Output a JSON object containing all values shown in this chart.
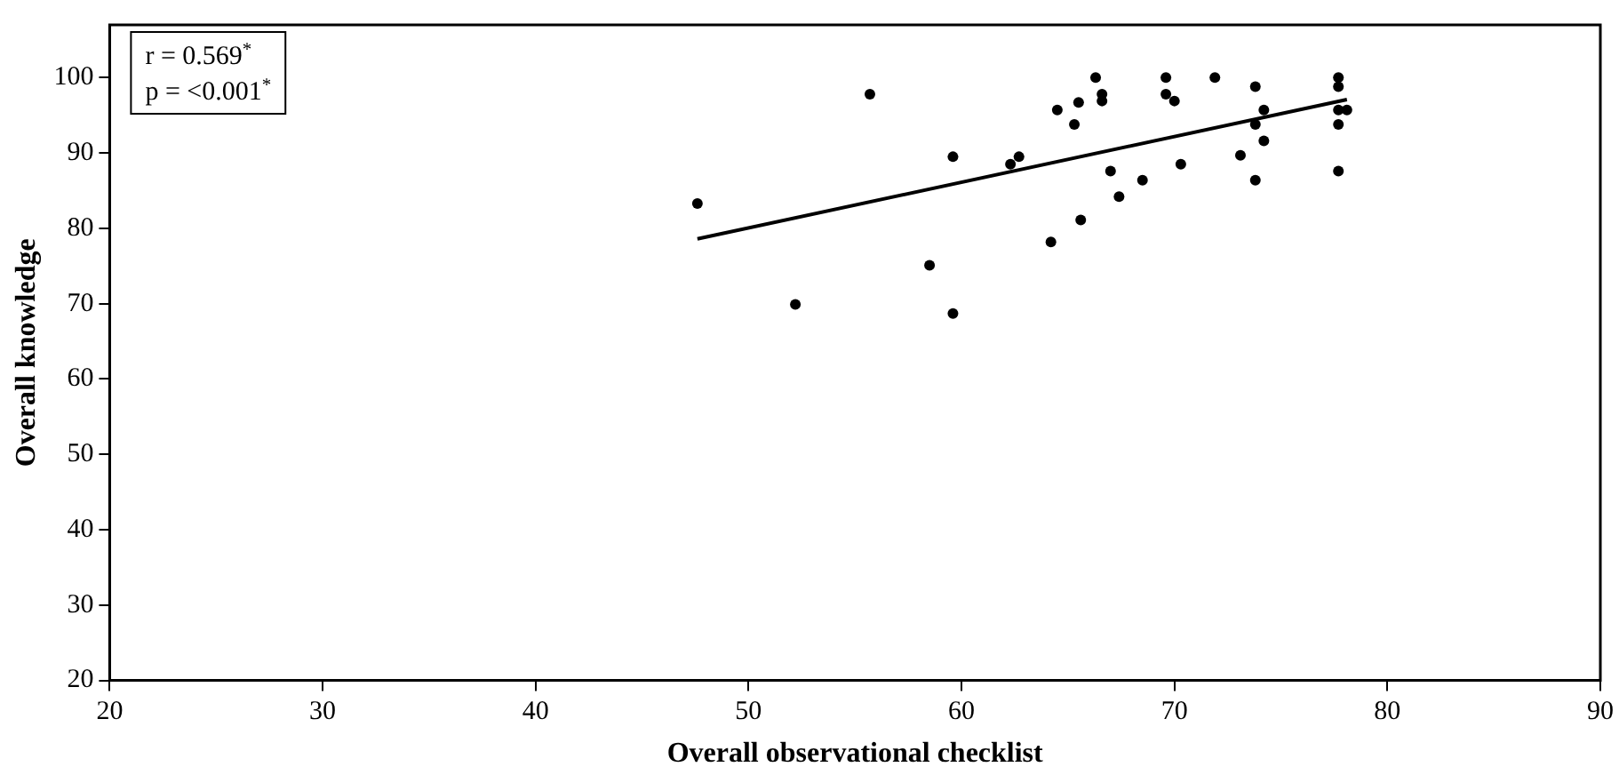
{
  "chart_data": {
    "type": "scatter",
    "xlabel": "Overall observational checklist",
    "ylabel": "Overall knowledge",
    "xlim": [
      20,
      90
    ],
    "xticks": [
      20,
      30,
      40,
      50,
      60,
      70,
      80,
      90
    ],
    "ylim": [
      20,
      107
    ],
    "yticks": [
      20,
      30,
      40,
      50,
      60,
      70,
      80,
      90,
      100
    ],
    "grid": false,
    "legend": false,
    "marker": "circle",
    "annotations": [
      "r = 0.569$^{*}$",
      "p = <0.001$^{*}$"
    ],
    "series": [
      {
        "color": "#000000",
        "x": [
          47.6,
          52.2,
          55.7,
          58.5,
          59.6,
          59.6,
          62.3,
          62.7,
          64.2,
          64.5,
          65.3,
          65.5,
          65.6,
          66.3,
          66.6,
          66.6,
          67.0,
          67.4,
          68.5,
          69.6,
          69.6,
          70.0,
          70.3,
          71.9,
          73.1,
          73.8,
          73.8,
          73.8,
          74.2,
          74.2,
          77.7,
          77.7,
          77.7,
          78.1,
          77.7,
          77.7
        ],
        "values": [
          83.3,
          69.9,
          97.8,
          75.1,
          89.5,
          68.7,
          88.5,
          89.5,
          78.2,
          95.7,
          93.8,
          96.7,
          81.1,
          100,
          97.8,
          96.9,
          87.6,
          84.2,
          86.4,
          100,
          97.8,
          96.9,
          88.5,
          100,
          89.7,
          98.8,
          93.8,
          86.4,
          95.7,
          91.6,
          100,
          98.8,
          95.7,
          95.7,
          93.8,
          87.6
        ]
      },
      {
        "type": "line",
        "color": "#000000",
        "marker": "none",
        "x": [
          47.6,
          78.1
        ],
        "values": [
          78.6,
          97.1
        ]
      }
    ]
  }
}
